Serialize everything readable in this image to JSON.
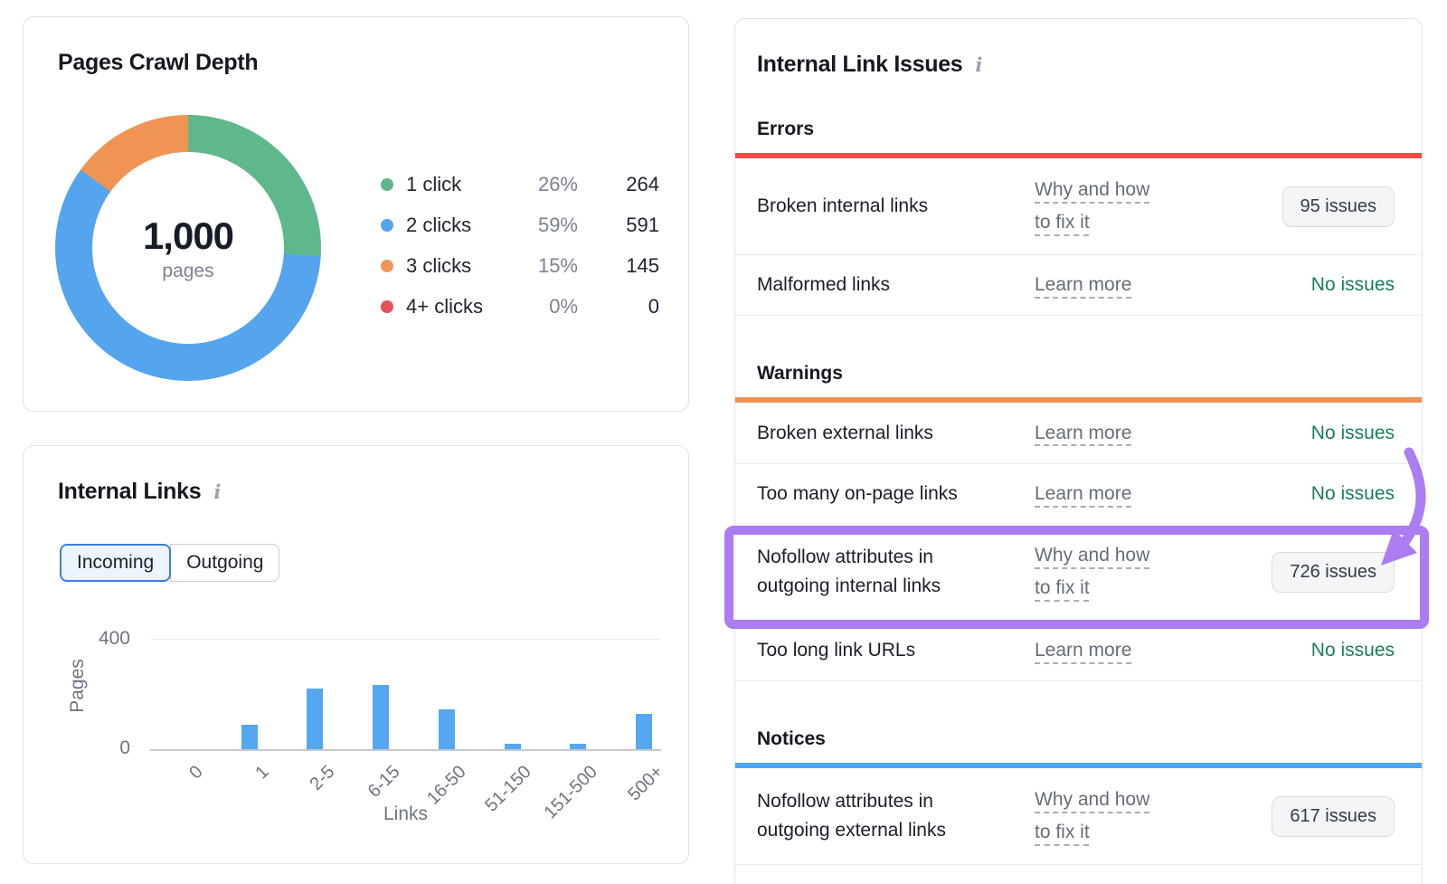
{
  "cards": {
    "internal_links": {
      "title": "Internal Links",
      "info_glyph": "i",
      "tabs": [
        {
          "label": "Incoming",
          "selected": true
        },
        {
          "label": "Outgoing",
          "selected": false
        }
      ]
    },
    "issues": {
      "title": "Internal Link Issues",
      "info_glyph": "i"
    }
  },
  "chart_data": [
    {
      "type": "pie",
      "title": "Pages Crawl Depth",
      "center_value": "1,000",
      "center_label": "pages",
      "legend_position": "right",
      "donut": true,
      "segments": [
        {
          "label": "1 click",
          "pct": 26,
          "pct_label": "26%",
          "value": 264,
          "color": "#5fb78c"
        },
        {
          "label": "2 clicks",
          "pct": 59,
          "pct_label": "59%",
          "value": 591,
          "color": "#55a4ee"
        },
        {
          "label": "3 clicks",
          "pct": 15,
          "pct_label": "15%",
          "value": 145,
          "color": "#f09453"
        },
        {
          "label": "4+ clicks",
          "pct": 0,
          "pct_label": "0%",
          "value": 0,
          "color": "#e55157"
        }
      ]
    },
    {
      "type": "bar",
      "title": "Internal Links (Incoming)",
      "categories": [
        "0",
        "1",
        "2-5",
        "6-15",
        "16-50",
        "51-150",
        "151-500",
        "500+"
      ],
      "values": [
        0,
        90,
        220,
        235,
        145,
        20,
        20,
        130
      ],
      "xlabel": "Links",
      "ylabel": "Pages",
      "ylim": [
        0,
        400
      ],
      "yticks": [
        0,
        400
      ],
      "grid": "y",
      "bar_color": "#55a7f0"
    }
  ],
  "issues_sections": [
    {
      "name": "Errors",
      "color": "#ef4c4c",
      "rows": [
        {
          "label": "Broken internal links",
          "link": "Why and how to fix it",
          "status": "95 issues",
          "status_type": "button"
        },
        {
          "label": "Malformed links",
          "link": "Learn more",
          "status": "No issues",
          "status_type": "ok"
        }
      ]
    },
    {
      "name": "Warnings",
      "color": "#f0914e",
      "rows": [
        {
          "label": "Broken external links",
          "link": "Learn more",
          "status": "No issues",
          "status_type": "ok"
        },
        {
          "label": "Too many on-page links",
          "link": "Learn more",
          "status": "No issues",
          "status_type": "ok"
        },
        {
          "label": "Nofollow attributes in outgoing internal links",
          "link": "Why and how to fix it",
          "status": "726 issues",
          "status_type": "button",
          "highlighted": true
        },
        {
          "label": "Too long link URLs",
          "link": "Learn more",
          "status": "No issues",
          "status_type": "ok"
        }
      ]
    },
    {
      "name": "Notices",
      "color": "#4ea6f2",
      "rows": [
        {
          "label": "Nofollow attributes in outgoing external links",
          "link": "Why and how to fix it",
          "status": "617 issues",
          "status_type": "button"
        }
      ]
    }
  ],
  "annotation": {
    "color": "#ab7cf2",
    "highlighted_row": "Nofollow attributes in outgoing internal links",
    "points_at": "726 issues"
  },
  "colors": {
    "no_issues_green": "#177e5b",
    "link_gray": "#666d78",
    "card_border": "#e0e3e8",
    "selected_tab_border": "#3d7edb",
    "selected_tab_bg": "#eef4fd"
  }
}
